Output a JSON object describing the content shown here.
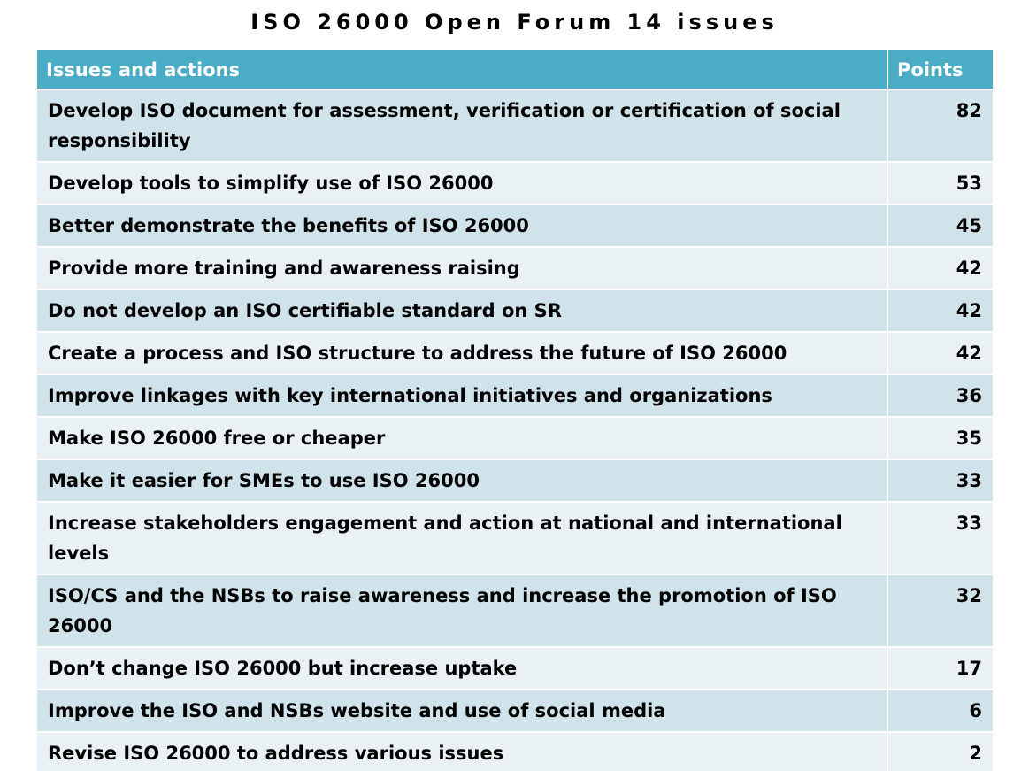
{
  "title": "ISO 26000 Open Forum 14 issues",
  "table": {
    "headers": {
      "issue": "Issues and actions",
      "points": "Points"
    },
    "rows": [
      {
        "issue": "Develop ISO document for assessment, verification or certification of social responsibility",
        "points": "82"
      },
      {
        "issue": "Develop tools to simplify use of ISO 26000",
        "points": "53"
      },
      {
        "issue": "Better demonstrate the benefits of ISO 26000",
        "points": "45"
      },
      {
        "issue": "Provide more training and awareness raising",
        "points": "42"
      },
      {
        "issue": "Do not develop an ISO certifiable standard on SR",
        "points": "42"
      },
      {
        "issue": "Create a process and ISO structure to address the future of ISO 26000",
        "points": "42"
      },
      {
        "issue": "Improve linkages with key international initiatives and organizations",
        "points": "36"
      },
      {
        "issue": "Make ISO 26000 free or cheaper",
        "points": "35"
      },
      {
        "issue": "Make it easier for SMEs to use ISO 26000",
        "points": "33"
      },
      {
        "issue": "Increase stakeholders engagement and action at national and international levels",
        "points": "33"
      },
      {
        "issue": "ISO/CS and the NSBs to raise awareness and increase the promotion of ISO 26000",
        "points": "32"
      },
      {
        "issue": "Don’t change ISO 26000 but increase uptake",
        "points": "17"
      },
      {
        "issue": "Improve the ISO and NSBs website and use of social media",
        "points": "6"
      },
      {
        "issue": "Revise ISO 26000 to address various  issues",
        "points": "2"
      }
    ]
  },
  "colors": {
    "header_bg": "#4bacc6",
    "row_odd": "#d0e3ea",
    "row_even": "#e9f1f4"
  }
}
